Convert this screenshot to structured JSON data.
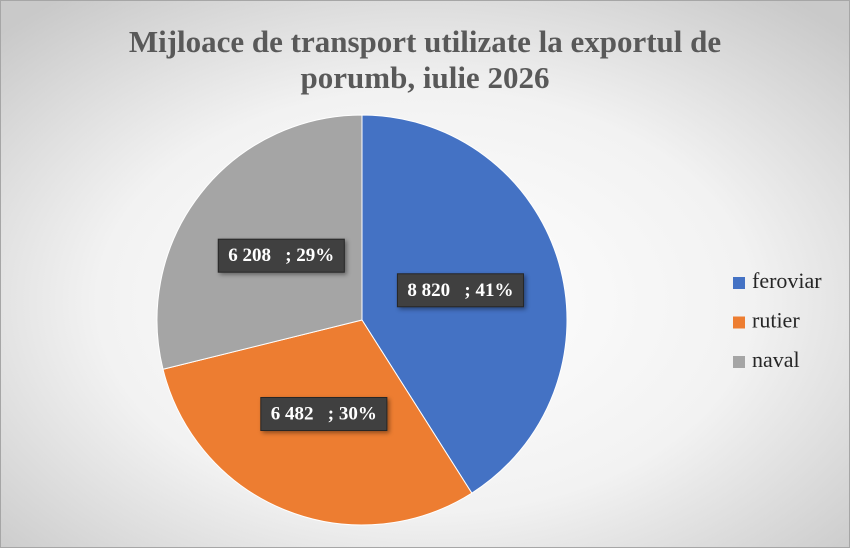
{
  "chart_data": {
    "type": "pie",
    "title": "Mijloace de transport utilizate la exportul de porumb, iulie 2026",
    "categories": [
      "feroviar",
      "rutier",
      "naval"
    ],
    "values": [
      8820,
      6482,
      6208
    ],
    "value_labels": [
      "8 820   ; 41%",
      "6 482   ; 30%",
      "6 208   ; 29%"
    ],
    "colors": [
      "#4472c4",
      "#ed7d31",
      "#a5a5a5"
    ],
    "legend": "right"
  }
}
